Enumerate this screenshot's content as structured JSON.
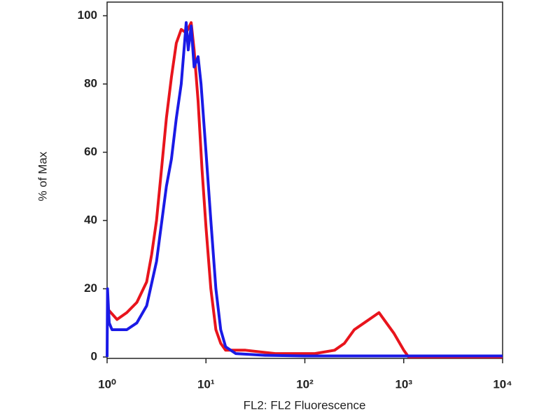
{
  "chart_data": {
    "type": "line",
    "xlabel": "FL2: FL2 Fluorescence",
    "ylabel": "% of Max",
    "xscale": "log",
    "xlim": [
      1,
      10000
    ],
    "xticks": [
      {
        "value": 1,
        "label": "10⁰"
      },
      {
        "value": 10,
        "label": "10¹"
      },
      {
        "value": 100,
        "label": "10²"
      },
      {
        "value": 1000,
        "label": "10³"
      },
      {
        "value": 10000,
        "label": "10⁴"
      }
    ],
    "ylim": [
      0,
      104
    ],
    "yticks": [
      0,
      20,
      40,
      60,
      80,
      100
    ],
    "grid": false,
    "series": [
      {
        "color": "#e8141c",
        "x": [
          1.02,
          1.26,
          1.58,
          2.0,
          2.51,
          2.82,
          3.16,
          3.55,
          3.98,
          4.47,
          5.01,
          5.62,
          6.31,
          7.08,
          7.59,
          8.32,
          9.12,
          10,
          11.2,
          12.6,
          14.1,
          15.8,
          25.1,
          50.1,
          79.4,
          126,
          200,
          251,
          316,
          398,
          501,
          562,
          631,
          794,
          1000,
          1122,
          10000
        ],
        "values": [
          14,
          11,
          13,
          16,
          22,
          30,
          40,
          55,
          70,
          82,
          92,
          96,
          95,
          98,
          90,
          75,
          55,
          38,
          20,
          8,
          4,
          2,
          2,
          1,
          1,
          1,
          2,
          4,
          8,
          10,
          12,
          13,
          11,
          7,
          2,
          0,
          0
        ]
      },
      {
        "color": "#1a1ae6",
        "x": [
          1,
          1.01,
          1.05,
          1.12,
          1.58,
          2.0,
          2.51,
          3.16,
          3.98,
          4.47,
          5.01,
          5.62,
          6.31,
          6.61,
          7.08,
          7.59,
          8.32,
          8.91,
          10,
          11.2,
          12.6,
          14.1,
          15.8,
          20,
          39.8,
          100,
          1000,
          10000
        ],
        "values": [
          0,
          20,
          10,
          8,
          8,
          10,
          15,
          28,
          50,
          58,
          70,
          80,
          98,
          90,
          97,
          85,
          88,
          80,
          60,
          40,
          20,
          8,
          3,
          1,
          0.5,
          0.3,
          0.3,
          0.3
        ]
      }
    ]
  }
}
